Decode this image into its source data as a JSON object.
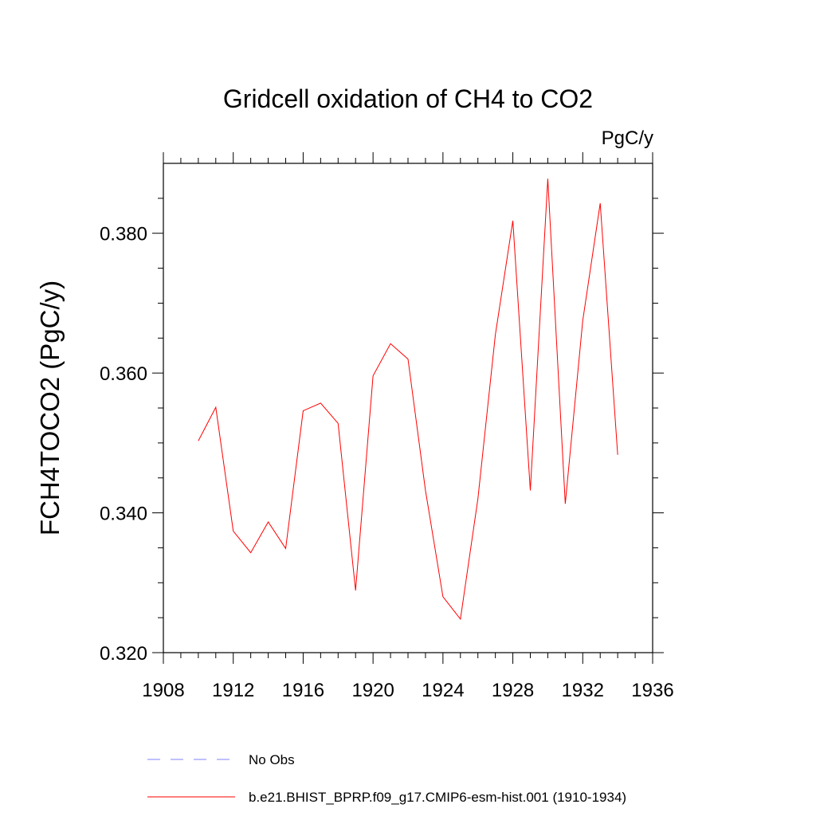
{
  "chart_data": {
    "type": "line",
    "title": "Gridcell oxidation of CH4 to CO2",
    "units_label": "PgC/y",
    "ylabel": "FCH4TOCO2  (PgC/y)",
    "xlabel": "",
    "xlim": [
      1908,
      1936
    ],
    "ylim": [
      0.32,
      0.39
    ],
    "x_ticks": [
      1908,
      1912,
      1916,
      1920,
      1924,
      1928,
      1932,
      1936
    ],
    "x_tick_labels": [
      "1908",
      "1912",
      "1916",
      "1920",
      "1924",
      "1928",
      "1932",
      "1936"
    ],
    "y_ticks": [
      0.32,
      0.34,
      0.36,
      0.38
    ],
    "y_tick_labels": [
      "0.320",
      "0.340",
      "0.360",
      "0.380"
    ],
    "series": [
      {
        "name": "b.e21.BHIST_BPRP.f09_g17.CMIP6-esm-hist.001 (1910-1934)",
        "color": "#ff0000",
        "style": "solid",
        "x": [
          1910,
          1911,
          1912,
          1913,
          1914,
          1915,
          1916,
          1917,
          1918,
          1919,
          1920,
          1921,
          1922,
          1923,
          1924,
          1925,
          1926,
          1927,
          1928,
          1929,
          1930,
          1931,
          1932,
          1933,
          1934
        ],
        "values": [
          0.3503,
          0.3551,
          0.3374,
          0.3343,
          0.3387,
          0.3349,
          0.3546,
          0.3557,
          0.3528,
          0.3289,
          0.3596,
          0.3642,
          0.362,
          0.3432,
          0.328,
          0.3248,
          0.342,
          0.3655,
          0.3818,
          0.3432,
          0.3878,
          0.3413,
          0.3675,
          0.3843,
          0.3483
        ]
      }
    ],
    "legend": [
      {
        "label": "No Obs",
        "color": "#8080ff",
        "style": "dashed"
      },
      {
        "label": "b.e21.BHIST_BPRP.f09_g17.CMIP6-esm-hist.001 (1910-1934)",
        "color": "#ff0000",
        "style": "solid"
      }
    ],
    "legend_position": "bottom"
  }
}
